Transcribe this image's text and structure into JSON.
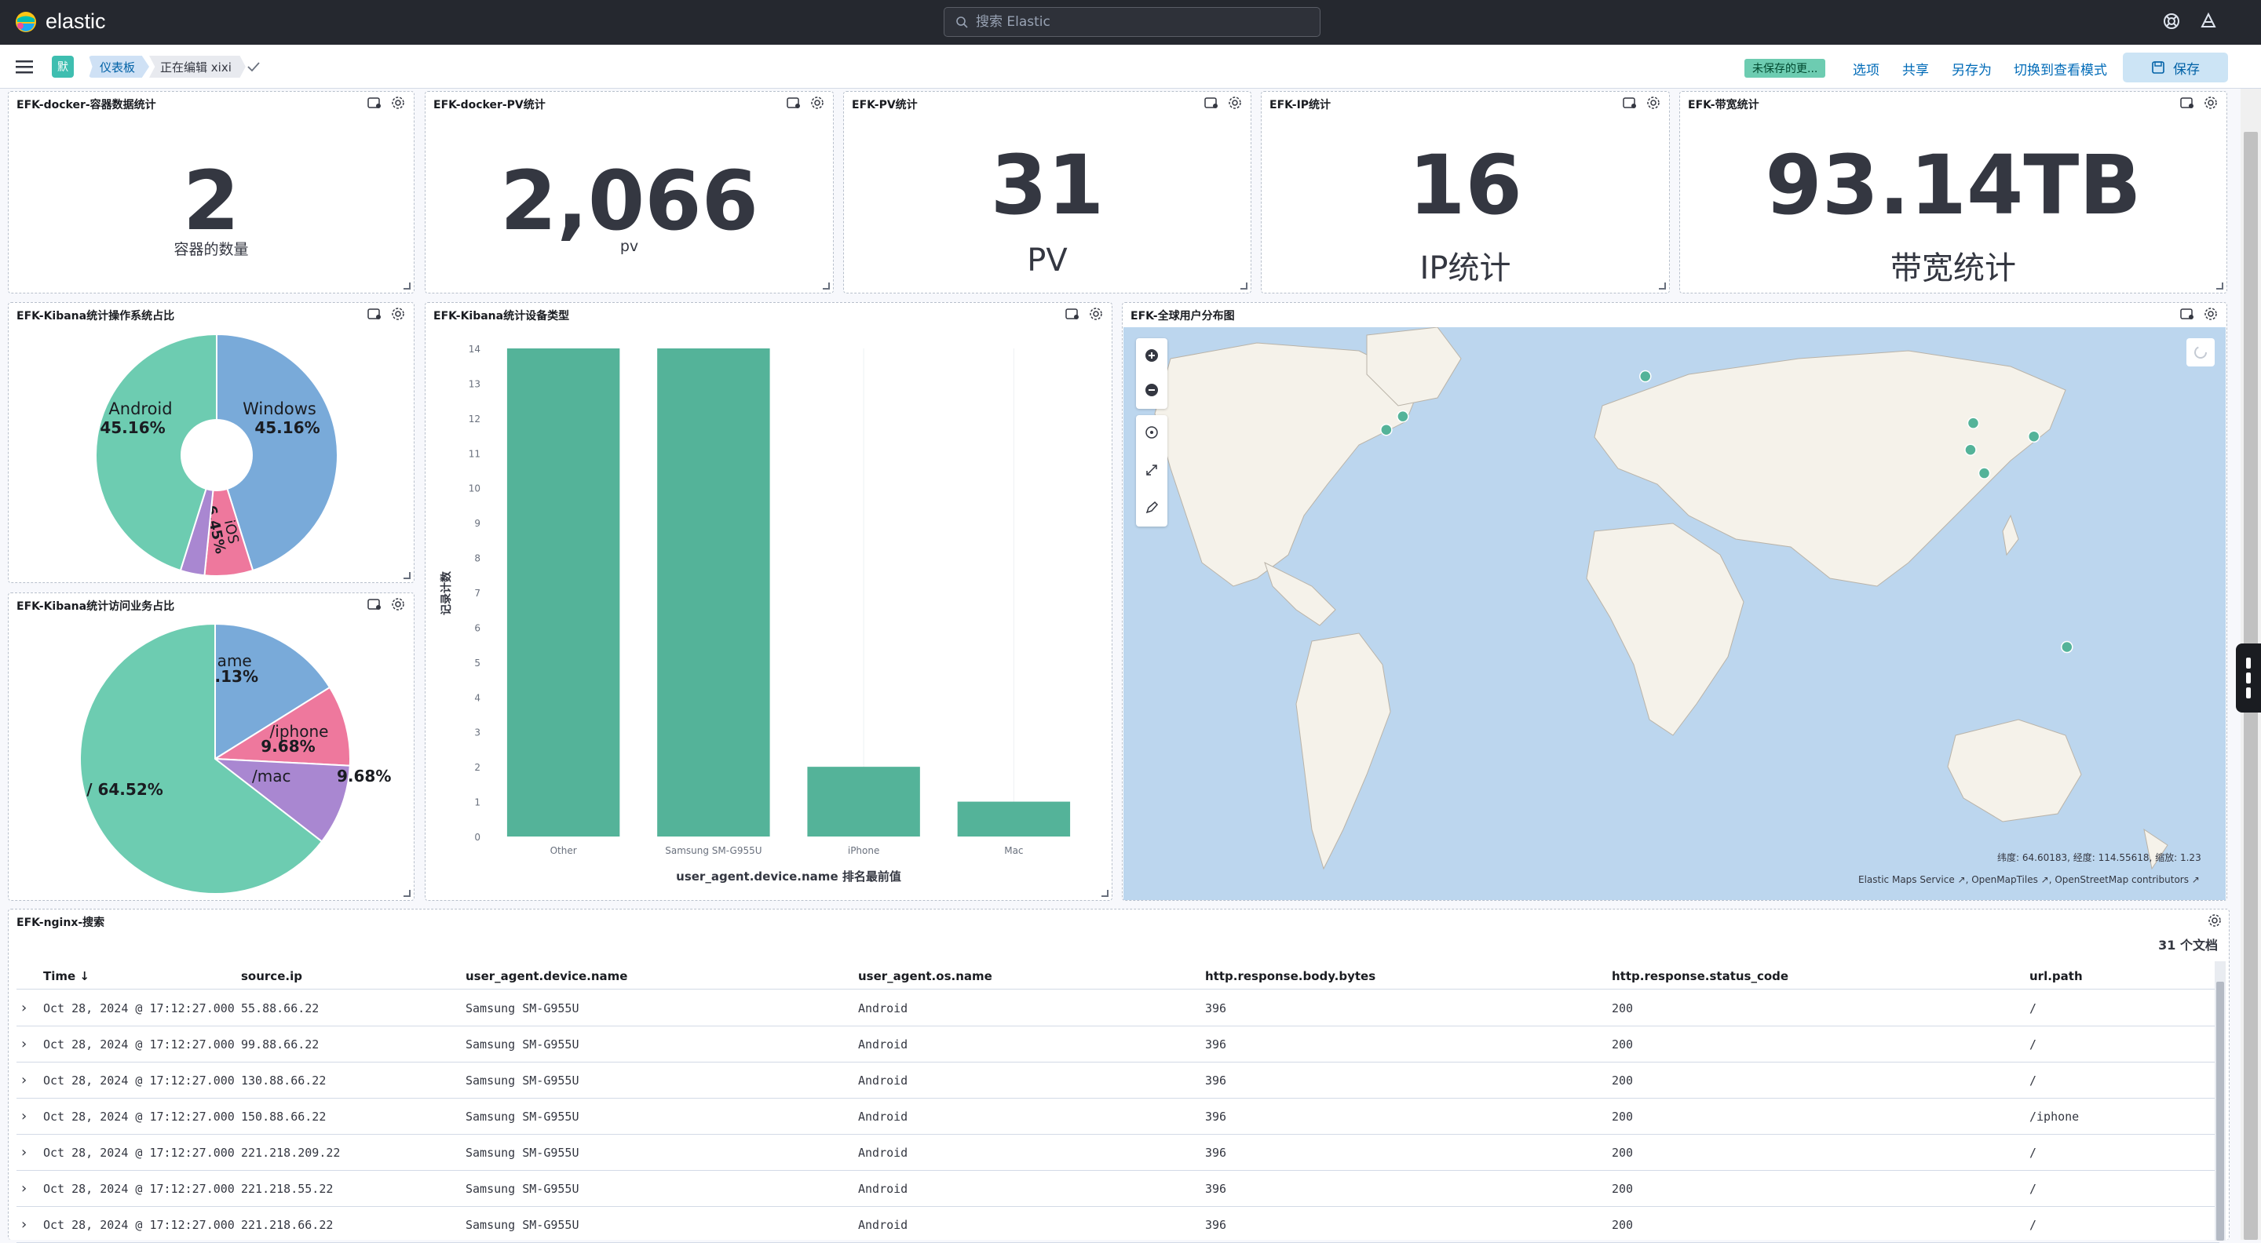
{
  "header": {
    "brand": "elastic",
    "search_placeholder": "搜索 Elastic"
  },
  "nav": {
    "space_badge": "默",
    "breadcrumbs": [
      "仪表板",
      "正在编辑 xixi"
    ],
    "unsaved_badge": "未保存的更...",
    "links": {
      "options": "选项",
      "share": "共享",
      "save_as": "另存为",
      "view_mode": "切换到查看模式"
    },
    "save_label": "保存"
  },
  "metrics": [
    {
      "title": "EFK-docker-容器数据统计",
      "value": "2",
      "label": "容器的数量"
    },
    {
      "title": "EFK-docker-PV统计",
      "value": "2,066",
      "label": "pv"
    },
    {
      "title": "EFK-PV统计",
      "value": "31",
      "label": "PV"
    },
    {
      "title": "EFK-IP统计",
      "value": "16",
      "label": "IP统计"
    },
    {
      "title": "EFK-带宽统计",
      "value": "93.14TB",
      "label": "带宽统计"
    }
  ],
  "os_pie": {
    "title": "EFK-Kibana统计操作系统占比",
    "slices": [
      {
        "name": "Windows",
        "pct": "45.16%",
        "value": 45.16,
        "color": "#79aad9"
      },
      {
        "name": "iOS",
        "pct": "6.45%",
        "value": 6.45,
        "color": "#ee789d"
      },
      {
        "name": "",
        "pct": "",
        "value": 3.23,
        "color": "#a987d1"
      },
      {
        "name": "Android",
        "pct": "45.16%",
        "value": 45.16,
        "color": "#6dccb1"
      }
    ]
  },
  "path_pie": {
    "title": "EFK-Kibana统计访问业务占比",
    "slices": [
      {
        "name": "/game",
        "pct": "16.13%",
        "value": 16.13,
        "color": "#79aad9"
      },
      {
        "name": "/iphone",
        "pct": "9.68%",
        "value": 9.68,
        "color": "#ee789d"
      },
      {
        "name": "/mac",
        "pct": "9.68%",
        "value": 9.68,
        "color": "#a987d1"
      },
      {
        "name": "/",
        "pct": "64.52%",
        "value": 64.52,
        "color": "#6dccb1"
      }
    ]
  },
  "chart_data": {
    "type": "bar",
    "title": "EFK-Kibana统计设备类型",
    "categories": [
      "Other",
      "Samsung SM-G955U",
      "iPhone",
      "Mac"
    ],
    "values": [
      14,
      14,
      2,
      1
    ],
    "xlabel": "user_agent.device.name 排名最前值",
    "ylabel": "记录计数",
    "ylim": [
      0,
      14
    ],
    "yticks": [
      0,
      1,
      2,
      3,
      4,
      5,
      6,
      7,
      8,
      9,
      10,
      11,
      12,
      13,
      14
    ],
    "color": "#54b399",
    "grid": true
  },
  "map": {
    "title": "EFK-全球用户分布图",
    "coords_text": "纬度: 64.60183, 经度: 114.55618, 缩放: 1.23",
    "attribution": "Elastic Maps Service ↗, OpenMapTiles ↗, OpenStreetMap contributors ↗",
    "points": [
      [
        -90,
        41
      ],
      [
        -96,
        37
      ],
      [
        -2,
        53
      ],
      [
        117,
        39
      ],
      [
        116,
        31
      ],
      [
        121,
        24
      ],
      [
        139,
        35
      ],
      [
        151,
        -28
      ]
    ]
  },
  "search": {
    "title": "EFK-nginx-搜索",
    "doc_count": "31 个文档",
    "columns": [
      "Time ↓",
      "source.ip",
      "user_agent.device.name",
      "user_agent.os.name",
      "http.response.body.bytes",
      "http.response.status_code",
      "url.path"
    ],
    "rows": [
      [
        "Oct 28, 2024 @ 17:12:27.000",
        "55.88.66.22",
        "Samsung SM-G955U",
        "Android",
        "396",
        "200",
        "/"
      ],
      [
        "Oct 28, 2024 @ 17:12:27.000",
        "99.88.66.22",
        "Samsung SM-G955U",
        "Android",
        "396",
        "200",
        "/"
      ],
      [
        "Oct 28, 2024 @ 17:12:27.000",
        "130.88.66.22",
        "Samsung SM-G955U",
        "Android",
        "396",
        "200",
        "/"
      ],
      [
        "Oct 28, 2024 @ 17:12:27.000",
        "150.88.66.22",
        "Samsung SM-G955U",
        "Android",
        "396",
        "200",
        "/iphone"
      ],
      [
        "Oct 28, 2024 @ 17:12:27.000",
        "221.218.209.22",
        "Samsung SM-G955U",
        "Android",
        "396",
        "200",
        "/"
      ],
      [
        "Oct 28, 2024 @ 17:12:27.000",
        "221.218.55.22",
        "Samsung SM-G955U",
        "Android",
        "396",
        "200",
        "/"
      ],
      [
        "Oct 28, 2024 @ 17:12:27.000",
        "221.218.66.22",
        "Samsung SM-G955U",
        "Android",
        "396",
        "200",
        "/"
      ]
    ]
  }
}
